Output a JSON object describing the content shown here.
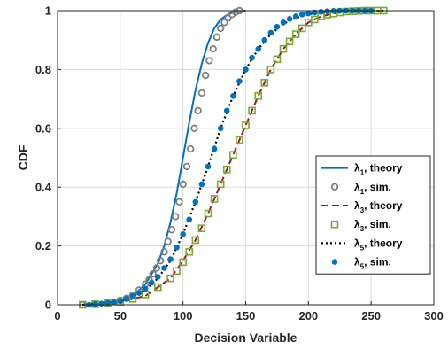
{
  "chart_data": {
    "type": "line",
    "xlabel": "Decision Variable",
    "ylabel": "CDF",
    "xlim": [
      0,
      300
    ],
    "ylim": [
      0,
      1
    ],
    "xticks": [
      "0",
      "50",
      "100",
      "150",
      "200",
      "250",
      "300"
    ],
    "yticks": [
      "0",
      "0.2",
      "0.4",
      "0.6",
      "0.8",
      "1"
    ],
    "grid": true,
    "legend_position": "bottom-right",
    "series": [
      {
        "name": "λ1, theory",
        "sym": "λ",
        "sub": "1",
        "suffix": ", theory",
        "style": "solid-line",
        "color": "#0072BD",
        "x": [
          20,
          40,
          60,
          70,
          80,
          85,
          90,
          95,
          100,
          105,
          110,
          115,
          120,
          125,
          130,
          135,
          140,
          145,
          150
        ],
        "y": [
          0.0,
          0.005,
          0.03,
          0.07,
          0.14,
          0.2,
          0.28,
          0.38,
          0.5,
          0.62,
          0.73,
          0.82,
          0.89,
          0.94,
          0.97,
          0.985,
          0.995,
          0.999,
          1.0
        ]
      },
      {
        "name": "λ1, sim.",
        "sym": "λ",
        "sub": "1",
        "suffix": ", sim.",
        "style": "open-circle",
        "color": "#808080",
        "x": [
          20,
          30,
          40,
          50,
          55,
          60,
          65,
          70,
          73,
          76,
          79,
          82,
          85,
          88,
          91,
          94,
          97,
          100,
          103,
          106,
          109,
          112,
          115,
          118,
          121,
          124,
          127,
          130,
          133,
          136,
          139,
          142,
          145
        ],
        "y": [
          0.0,
          0.002,
          0.006,
          0.015,
          0.022,
          0.033,
          0.05,
          0.07,
          0.085,
          0.105,
          0.125,
          0.15,
          0.18,
          0.215,
          0.255,
          0.3,
          0.35,
          0.41,
          0.47,
          0.53,
          0.6,
          0.66,
          0.72,
          0.78,
          0.83,
          0.87,
          0.91,
          0.94,
          0.96,
          0.975,
          0.987,
          0.995,
          1.0
        ]
      },
      {
        "name": "λ3, theory",
        "sym": "λ",
        "sub": "3",
        "suffix": ", theory",
        "style": "dashed-line",
        "color": "#A2142F",
        "x": [
          20,
          50,
          70,
          90,
          100,
          110,
          120,
          130,
          140,
          150,
          160,
          170,
          180,
          190,
          200,
          210,
          220,
          230,
          240,
          260
        ],
        "y": [
          0.0,
          0.01,
          0.03,
          0.09,
          0.15,
          0.22,
          0.31,
          0.41,
          0.51,
          0.61,
          0.71,
          0.8,
          0.87,
          0.92,
          0.96,
          0.98,
          0.99,
          0.997,
          1.0,
          1.0
        ]
      },
      {
        "name": "λ3, sim.",
        "sym": "λ",
        "sub": "3",
        "suffix": ", sim.",
        "style": "open-square",
        "color": "#77AC30",
        "x": [
          20,
          30,
          40,
          50,
          60,
          70,
          80,
          90,
          95,
          100,
          105,
          110,
          115,
          120,
          125,
          130,
          135,
          140,
          145,
          150,
          155,
          160,
          165,
          170,
          175,
          180,
          185,
          190,
          195,
          200,
          205,
          210,
          215,
          220,
          225,
          230,
          235,
          240,
          245,
          250,
          255,
          260
        ],
        "y": [
          0.0,
          0.002,
          0.005,
          0.01,
          0.02,
          0.035,
          0.06,
          0.09,
          0.115,
          0.145,
          0.18,
          0.22,
          0.26,
          0.31,
          0.36,
          0.41,
          0.46,
          0.51,
          0.56,
          0.61,
          0.66,
          0.71,
          0.755,
          0.8,
          0.835,
          0.87,
          0.895,
          0.92,
          0.94,
          0.96,
          0.97,
          0.98,
          0.986,
          0.99,
          0.994,
          0.997,
          0.998,
          0.999,
          1.0,
          1.0,
          1.0,
          1.0
        ]
      },
      {
        "name": "λ5, theory",
        "sym": "λ",
        "sub": "5",
        "suffix": ", theory",
        "style": "dotted-line",
        "color": "#000000",
        "x": [
          20,
          50,
          70,
          80,
          90,
          100,
          110,
          120,
          130,
          140,
          150,
          160,
          170,
          180,
          190,
          200,
          210,
          220,
          230,
          250
        ],
        "y": [
          0.0,
          0.01,
          0.05,
          0.09,
          0.15,
          0.24,
          0.35,
          0.47,
          0.6,
          0.71,
          0.8,
          0.87,
          0.92,
          0.955,
          0.975,
          0.988,
          0.995,
          0.998,
          1.0,
          1.0
        ]
      },
      {
        "name": "λ5, sim.",
        "sym": "λ",
        "sub": "5",
        "suffix": ", sim.",
        "style": "filled-circle",
        "color": "#0072BD",
        "x": [
          25,
          30,
          35,
          40,
          45,
          50,
          55,
          60,
          65,
          70,
          75,
          80,
          85,
          90,
          95,
          100,
          105,
          110,
          115,
          120,
          125,
          130,
          135,
          140,
          145,
          150,
          155,
          160,
          165,
          170,
          175,
          180,
          185,
          190,
          195,
          200,
          205,
          210,
          215,
          220,
          225,
          230,
          235,
          240,
          245,
          250
        ],
        "y": [
          0.0,
          0.002,
          0.004,
          0.006,
          0.009,
          0.013,
          0.02,
          0.03,
          0.04,
          0.055,
          0.075,
          0.095,
          0.125,
          0.155,
          0.195,
          0.24,
          0.29,
          0.35,
          0.41,
          0.47,
          0.53,
          0.6,
          0.66,
          0.71,
          0.76,
          0.8,
          0.84,
          0.87,
          0.9,
          0.925,
          0.945,
          0.96,
          0.972,
          0.981,
          0.987,
          0.991,
          0.994,
          0.996,
          0.998,
          0.999,
          1.0,
          1.0,
          1.0,
          1.0,
          1.0,
          1.0
        ]
      }
    ]
  }
}
